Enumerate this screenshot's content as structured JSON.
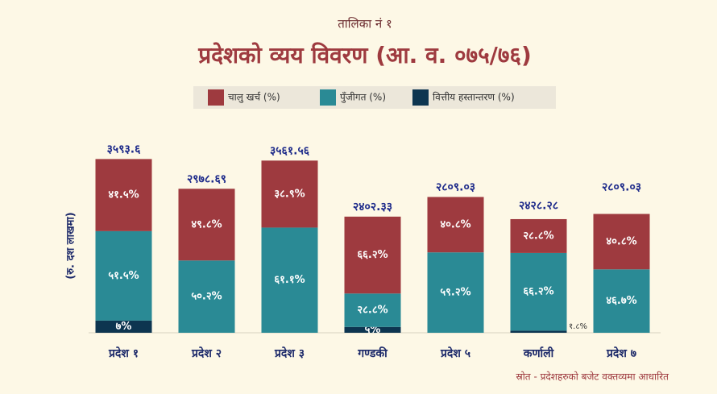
{
  "chart_data": {
    "type": "stacked-bar",
    "subtitle": "तालिका नं १",
    "title": "प्रदेशको व्यय विवरण (आ. व. ०७५/७६)",
    "y_label": "(रु. दश लाखमा)",
    "source": "स्रोत - प्रदेशहरुको बजेट वक्तव्यमा आधारित",
    "categories": [
      "प्रदेश १",
      "प्रदेश २",
      "प्रदेश ३",
      "गण्डकी",
      "प्रदेश ५",
      "कर्णाली",
      "प्रदेश ७"
    ],
    "totals": {
      "values": [
        3593.6,
        2978.69,
        3561.56,
        2402.33,
        2809.03,
        2428.28,
        2809.03
      ],
      "value_labels": [
        "३५९३.६",
        "२९७८.६९",
        "३५६१.५६",
        "२४०२.३३",
        "२८०९.०३",
        "२४२८.२८",
        "२८०९.०३"
      ]
    },
    "ylim": [
      0,
      4000
    ],
    "series": [
      {
        "name": "वित्तीय हस्तान्तरण (%)",
        "color": "#0d3550",
        "values": [
          7,
          null,
          null,
          5,
          null,
          1.8,
          null
        ],
        "value_labels": [
          "७%",
          null,
          null,
          "५%",
          null,
          "१.८%",
          null
        ]
      },
      {
        "name": "पुँजीगत (%)",
        "color": "#2a8a95",
        "values": [
          51.5,
          50.2,
          61.1,
          28.8,
          59.2,
          66.2,
          46.7
        ],
        "value_labels": [
          "५१.५%",
          "५०.२%",
          "६१.१%",
          "२८.८%",
          "५९.२%",
          "६६.२%",
          "४६.७%"
        ]
      },
      {
        "name": "चालु खर्च (%)",
        "color": "#9e3a3f",
        "values": [
          41.5,
          49.8,
          38.9,
          66.2,
          40.8,
          28.8,
          40.8
        ],
        "value_labels": [
          "४१.५%",
          "४९.८%",
          "३८.९%",
          "६६.२%",
          "४०.८%",
          "२८.८%",
          "४०.८%"
        ]
      }
    ]
  }
}
